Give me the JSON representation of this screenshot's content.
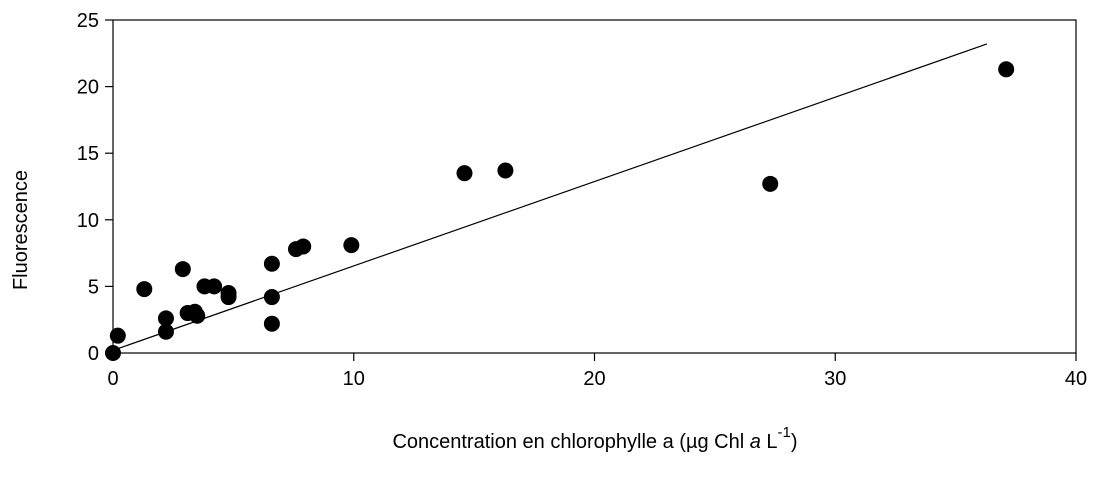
{
  "chart_data": {
    "type": "scatter",
    "title": "",
    "xlabel_parts": {
      "prefix": "Concentration en chlorophylle a (µg Chl ",
      "italic": "a",
      "unit": " L",
      "sup": "-1",
      "suffix": ")"
    },
    "ylabel": "Fluorescence",
    "xlim": [
      0,
      40
    ],
    "ylim": [
      0,
      25
    ],
    "x_ticks": [
      0,
      10,
      20,
      30,
      40
    ],
    "y_ticks": [
      0,
      5,
      10,
      15,
      20,
      25
    ],
    "grid": false,
    "legend": "none",
    "point_color": "#000000",
    "series": [
      {
        "points": [
          {
            "x": 0.0,
            "y": 0.0
          },
          {
            "x": 0.2,
            "y": 1.3
          },
          {
            "x": 1.3,
            "y": 4.8
          },
          {
            "x": 2.2,
            "y": 1.6
          },
          {
            "x": 2.2,
            "y": 2.6
          },
          {
            "x": 2.9,
            "y": 6.3
          },
          {
            "x": 3.1,
            "y": 3.0
          },
          {
            "x": 3.4,
            "y": 3.1
          },
          {
            "x": 3.5,
            "y": 2.8
          },
          {
            "x": 3.8,
            "y": 5.0
          },
          {
            "x": 4.2,
            "y": 5.0
          },
          {
            "x": 4.8,
            "y": 4.2
          },
          {
            "x": 4.8,
            "y": 4.5
          },
          {
            "x": 6.6,
            "y": 2.2
          },
          {
            "x": 6.6,
            "y": 4.2
          },
          {
            "x": 6.6,
            "y": 6.7
          },
          {
            "x": 7.6,
            "y": 7.8
          },
          {
            "x": 7.9,
            "y": 8.0
          },
          {
            "x": 9.9,
            "y": 8.1
          },
          {
            "x": 14.6,
            "y": 13.5
          },
          {
            "x": 16.3,
            "y": 13.7
          },
          {
            "x": 27.3,
            "y": 12.7
          },
          {
            "x": 37.1,
            "y": 21.3
          }
        ]
      }
    ],
    "trendline": {
      "x": [
        0,
        36.3
      ],
      "y": [
        0.2,
        23.2
      ],
      "color": "#000000"
    }
  }
}
